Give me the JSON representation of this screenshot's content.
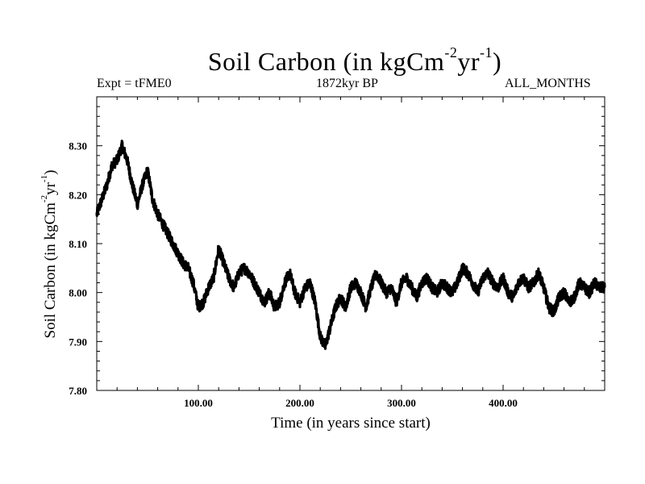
{
  "chart_data": {
    "type": "line",
    "title": "Soil Carbon (in kgCm",
    "title_sup1": "-2",
    "title_mid": "yr",
    "title_sup2": "-1",
    "title_end": ")",
    "subtitle_left": "Expt = tFME0",
    "subtitle_center": "1872kyr BP",
    "subtitle_right": "ALL_MONTHS",
    "xlabel": "Time (in years since start)",
    "ylabel": "Soil Carbon (in kgCm",
    "ylabel_sup1": "-2",
    "ylabel_mid": "yr",
    "ylabel_sup2": "-1",
    "ylabel_end": ")",
    "xlim": [
      0,
      500
    ],
    "ylim": [
      7.8,
      8.4
    ],
    "xticks": [
      100,
      200,
      300,
      400
    ],
    "xtick_labels": [
      "100.00",
      "200.00",
      "300.00",
      "400.00"
    ],
    "yticks": [
      7.8,
      7.9,
      8.0,
      8.1,
      8.2,
      8.3
    ],
    "ytick_labels": [
      "7.80",
      "7.90",
      "8.00",
      "8.10",
      "8.20",
      "8.30"
    ],
    "grid": false,
    "series": [
      {
        "name": "Soil Carbon",
        "color": "#000000",
        "x": [
          0,
          5,
          10,
          15,
          20,
          25,
          30,
          35,
          40,
          45,
          50,
          55,
          60,
          65,
          70,
          75,
          80,
          85,
          90,
          95,
          100,
          105,
          110,
          115,
          120,
          125,
          130,
          135,
          140,
          145,
          150,
          155,
          160,
          165,
          170,
          175,
          180,
          185,
          190,
          195,
          200,
          205,
          210,
          215,
          220,
          225,
          230,
          235,
          240,
          245,
          250,
          255,
          260,
          265,
          270,
          275,
          280,
          285,
          290,
          295,
          300,
          305,
          310,
          315,
          320,
          325,
          330,
          335,
          340,
          345,
          350,
          355,
          360,
          365,
          370,
          375,
          380,
          385,
          390,
          395,
          400,
          405,
          410,
          415,
          420,
          425,
          430,
          435,
          440,
          445,
          450,
          455,
          460,
          465,
          470,
          475,
          480,
          485,
          490,
          495,
          500
        ],
        "y": [
          8.16,
          8.19,
          8.22,
          8.26,
          8.27,
          8.3,
          8.27,
          8.22,
          8.18,
          8.22,
          8.25,
          8.19,
          8.16,
          8.14,
          8.12,
          8.1,
          8.08,
          8.06,
          8.05,
          8.02,
          7.97,
          7.98,
          8.01,
          8.03,
          8.09,
          8.06,
          8.03,
          8.01,
          8.04,
          8.05,
          8.04,
          8.02,
          8.0,
          7.98,
          8.0,
          7.97,
          7.98,
          8.02,
          8.04,
          8.0,
          7.98,
          8.01,
          8.02,
          7.98,
          7.91,
          7.89,
          7.93,
          7.97,
          7.99,
          7.97,
          8.01,
          8.02,
          8.0,
          7.97,
          8.01,
          8.04,
          8.02,
          8.0,
          8.01,
          7.98,
          8.02,
          8.03,
          8.01,
          7.99,
          8.02,
          8.03,
          8.01,
          8.0,
          8.02,
          8.01,
          8.0,
          8.02,
          8.05,
          8.04,
          8.02,
          8.0,
          8.03,
          8.04,
          8.02,
          8.01,
          8.03,
          8.0,
          7.99,
          8.02,
          8.03,
          8.01,
          8.02,
          8.04,
          8.01,
          7.97,
          7.96,
          7.99,
          8.0,
          7.98,
          7.99,
          8.02,
          8.01,
          8.0,
          8.02,
          8.01,
          8.01
        ]
      }
    ]
  }
}
